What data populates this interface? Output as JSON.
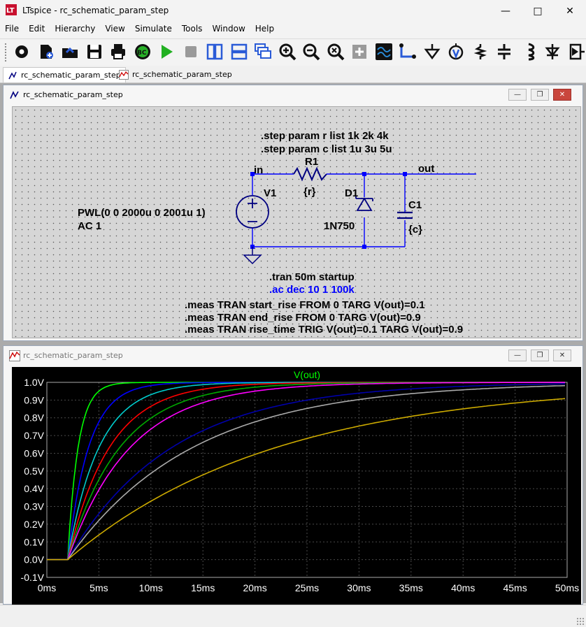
{
  "window": {
    "title": "LTspice - rc_schematic_param_step"
  },
  "menu": [
    "File",
    "Edit",
    "Hierarchy",
    "View",
    "Simulate",
    "Tools",
    "Window",
    "Help"
  ],
  "toolbar": [
    {
      "name": "settings-icon"
    },
    {
      "name": "new-schematic-icon"
    },
    {
      "name": "open-icon"
    },
    {
      "name": "save-icon"
    },
    {
      "name": "print-icon"
    },
    {
      "name": "bom-icon"
    },
    {
      "name": "run-icon"
    },
    {
      "name": "halt-icon"
    },
    {
      "name": "tile-vertical-icon"
    },
    {
      "name": "tile-horizontal-icon"
    },
    {
      "name": "cascade-icon"
    },
    {
      "name": "zoom-in-icon"
    },
    {
      "name": "zoom-out-icon"
    },
    {
      "name": "zoom-fit-icon"
    },
    {
      "name": "zoom-full-icon"
    },
    {
      "name": "waveform-icon"
    },
    {
      "name": "wire-icon"
    },
    {
      "name": "ground-icon"
    },
    {
      "name": "label-net-icon"
    },
    {
      "name": "resistor-icon"
    },
    {
      "name": "capacitor-icon"
    },
    {
      "name": "inductor-icon"
    },
    {
      "name": "diode-icon"
    },
    {
      "name": "component-icon"
    }
  ],
  "tabs": [
    {
      "label": "rc_schematic_param_step",
      "kind": "schematic"
    },
    {
      "label": "rc_schematic_param_step",
      "kind": "waveform"
    }
  ],
  "schematic": {
    "title": "rc_schematic_param_step",
    "directive_step_r": ".step param r list 1k 2k 4k",
    "directive_step_c": ".step param c list 1u 3u 5u",
    "net_in": "in",
    "net_out": "out",
    "r1_name": "R1",
    "r1_value": "{r}",
    "d1_name": "D1",
    "d1_value": "1N750",
    "c1_name": "C1",
    "c1_value": "{c}",
    "v1_name": "V1",
    "v1_value_1": "PWL(0 0 2000u 0 2001u 1)",
    "v1_value_2": "AC 1",
    "directive_tran": ".tran 50m startup",
    "directive_ac": ".ac dec 10 1 100k",
    "meas_1": ".meas TRAN start_rise FROM 0 TARG V(out)=0.1",
    "meas_2": ".meas TRAN end_rise FROM 0 TARG V(out)=0.9",
    "meas_3": ".meas TRAN rise_time TRIG V(out)=0.1 TARG V(out)=0.9",
    "colors": {
      "wire": "#0000ff",
      "component": "#000080",
      "text": "#000000",
      "ac_text": "#0000ff"
    }
  },
  "waveform": {
    "title": "rc_schematic_param_step"
  },
  "chart_data": {
    "type": "line",
    "title": "V(out)",
    "xlabel": "",
    "ylabel": "",
    "xlim": [
      0,
      50
    ],
    "ylim": [
      -0.1,
      1.0
    ],
    "x_ticks": [
      "0ms",
      "5ms",
      "10ms",
      "15ms",
      "20ms",
      "25ms",
      "30ms",
      "35ms",
      "40ms",
      "45ms",
      "50ms"
    ],
    "y_ticks": [
      "-0.1V",
      "0.0V",
      "0.1V",
      "0.2V",
      "0.3V",
      "0.4V",
      "0.5V",
      "0.6V",
      "0.7V",
      "0.8V",
      "0.9V",
      "1.0V"
    ],
    "step_time_ms": 2,
    "grid": true,
    "series": [
      {
        "tau_ms": 1,
        "color": "#00ff00"
      },
      {
        "tau_ms": 2,
        "color": "#0000ff"
      },
      {
        "tau_ms": 3,
        "color": "#00cccc"
      },
      {
        "tau_ms": 4,
        "color": "#ff0000"
      },
      {
        "tau_ms": 5,
        "color": "#00aa00"
      },
      {
        "tau_ms": 6,
        "color": "#ff00ff"
      },
      {
        "tau_ms": 10,
        "color": "#0000aa"
      },
      {
        "tau_ms": 12,
        "color": "#aaaaaa"
      },
      {
        "tau_ms": 20,
        "color": "#ccaa00"
      }
    ],
    "colors": {
      "background": "#000000",
      "grid": "#4a4a4a",
      "axis_text": "#ffffff",
      "title": "#00ff00"
    }
  }
}
